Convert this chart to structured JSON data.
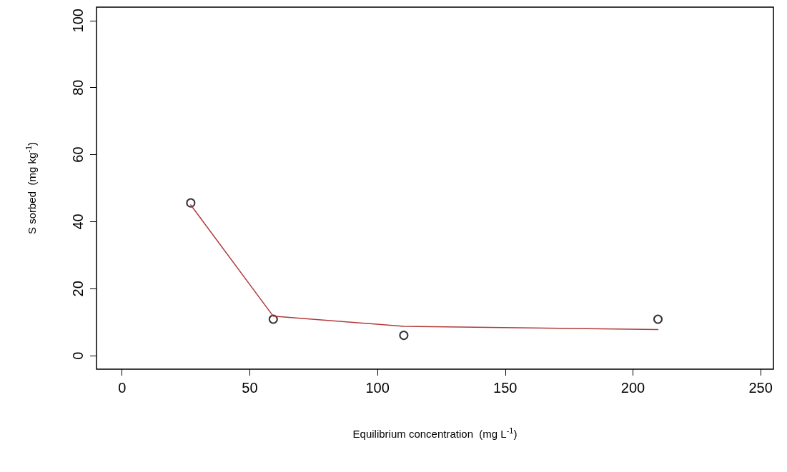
{
  "chart_data": {
    "type": "scatter",
    "xlabel": "Equilibrium concentration  (mg L$^{-1}$)",
    "ylabel": "S sorbed  (mg kg$^{-1}$)",
    "xlim": [
      -10,
      255
    ],
    "ylim": [
      -4,
      104
    ],
    "xticks": [
      0,
      50,
      100,
      150,
      200,
      250
    ],
    "yticks": [
      0,
      20,
      40,
      60,
      80,
      100
    ],
    "grid": false,
    "series": [
      {
        "color": "#000000",
        "marker": "circle",
        "x": [
          26.9,
          59.2,
          110.3,
          209.8
        ],
        "values": [
          45.6,
          10.9,
          6.1,
          10.9
        ]
      },
      {
        "type": "line",
        "color": "#b03a3a",
        "marker": "none",
        "line_style": "solid",
        "x": [
          26.9,
          59.2,
          110.3,
          209.8
        ],
        "values": [
          45.0,
          11.8,
          8.8,
          7.8
        ]
      }
    ]
  }
}
